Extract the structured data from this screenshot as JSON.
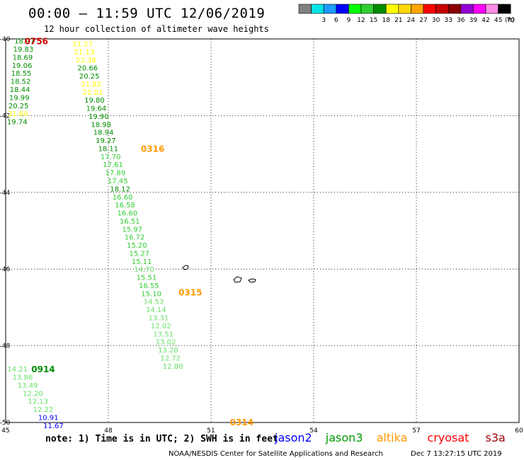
{
  "header": {
    "title": "00:00 – 11:59 UTC 12/06/2019",
    "subtitle": "12 hour collection of altimeter wave heights"
  },
  "colorbar": {
    "unit": "(ft)",
    "swatches": [
      {
        "label": "",
        "color": "#808080"
      },
      {
        "label": "3",
        "color": "#00e6e6"
      },
      {
        "label": "6",
        "color": "#1e9bff"
      },
      {
        "label": "9",
        "color": "#0000ff"
      },
      {
        "label": "12",
        "color": "#00ff00"
      },
      {
        "label": "15",
        "color": "#32cd32"
      },
      {
        "label": "18",
        "color": "#008c00"
      },
      {
        "label": "21",
        "color": "#ffff00"
      },
      {
        "label": "24",
        "color": "#ffd700"
      },
      {
        "label": "27",
        "color": "#ffa500"
      },
      {
        "label": "30",
        "color": "#ff0000"
      },
      {
        "label": "33",
        "color": "#c80000"
      },
      {
        "label": "36",
        "color": "#8b0000"
      },
      {
        "label": "39",
        "color": "#9400d3"
      },
      {
        "label": "42",
        "color": "#ff00ff"
      },
      {
        "label": "45",
        "color": "#ff8ce6"
      },
      {
        "label": "70",
        "color": "#000000"
      }
    ]
  },
  "footer": {
    "note": "note: 1) Time is in UTC; 2) SWH is in feet",
    "credit": "NOAA/NESDIS Center for Satellite Applications and Research",
    "timestamp": "Dec  7 13:27:15 UTC 2019",
    "missions": [
      {
        "name": "jason2",
        "color": "#0000ff"
      },
      {
        "name": "jason3",
        "color": "#009900"
      },
      {
        "name": "altika",
        "color": "#ff9900"
      },
      {
        "name": "cryosat",
        "color": "#ff0000"
      },
      {
        "name": "s3a",
        "color": "#990000"
      }
    ]
  },
  "chart_data": {
    "type": "scatter",
    "xlim": [
      45,
      60
    ],
    "ylim": [
      -50,
      -40
    ],
    "x_ticks": [
      "45",
      "48",
      "51",
      "54",
      "57",
      "60"
    ],
    "y_ticks": [
      "-40",
      "-42",
      "-44",
      "-46",
      "-48",
      "-50"
    ],
    "grid": true,
    "time_labels": [
      {
        "text": "0756",
        "lon": 45.55,
        "lat": -40.05,
        "color": "#cc0000"
      },
      {
        "text": "0316",
        "lon": 48.95,
        "lat": -42.85,
        "color": "#ff9900"
      },
      {
        "text": "0315",
        "lon": 50.05,
        "lat": -46.6,
        "color": "#ff9900"
      },
      {
        "text": "0914",
        "lon": 45.75,
        "lat": -48.6,
        "color": "#008c00"
      },
      {
        "text": "0314",
        "lon": 51.55,
        "lat": -49.98,
        "color": "#ff9900"
      }
    ],
    "track_jason3_a": [
      {
        "v": "18.97",
        "lon": 45.25,
        "lat": -40.05,
        "color": "#008c00"
      },
      {
        "v": "19.83",
        "lon": 45.22,
        "lat": -40.26,
        "color": "#008c00"
      },
      {
        "v": "18.69",
        "lon": 45.2,
        "lat": -40.47,
        "color": "#008c00"
      },
      {
        "v": "19.06",
        "lon": 45.18,
        "lat": -40.68,
        "color": "#008c00"
      },
      {
        "v": "18.55",
        "lon": 45.16,
        "lat": -40.89,
        "color": "#008c00"
      },
      {
        "v": "18.52",
        "lon": 45.14,
        "lat": -41.1,
        "color": "#008c00"
      },
      {
        "v": "18.44",
        "lon": 45.12,
        "lat": -41.31,
        "color": "#008c00"
      },
      {
        "v": "19.99",
        "lon": 45.1,
        "lat": -41.52,
        "color": "#008c00"
      },
      {
        "v": "20.25",
        "lon": 45.08,
        "lat": -41.73,
        "color": "#008c00"
      },
      {
        "v": "21.60",
        "lon": 45.06,
        "lat": -41.94,
        "color": "#ffff00"
      },
      {
        "v": "19.74",
        "lon": 45.04,
        "lat": -42.15,
        "color": "#008c00"
      }
    ],
    "track_altika": [
      {
        "v": "21.27",
        "lon": 46.95,
        "lat": -40.12,
        "color": "#ffff00"
      },
      {
        "v": "21.13",
        "lon": 47.0,
        "lat": -40.33,
        "color": "#ffff00"
      },
      {
        "v": "22.38",
        "lon": 47.05,
        "lat": -40.54,
        "color": "#ffff00"
      },
      {
        "v": "20.66",
        "lon": 47.1,
        "lat": -40.75,
        "color": "#008c00"
      },
      {
        "v": "20.25",
        "lon": 47.15,
        "lat": -40.96,
        "color": "#008c00"
      },
      {
        "v": "21.82",
        "lon": 47.2,
        "lat": -41.17,
        "color": "#ffff00"
      },
      {
        "v": "22.01",
        "lon": 47.25,
        "lat": -41.38,
        "color": "#ffff00"
      },
      {
        "v": "19.80",
        "lon": 47.3,
        "lat": -41.59,
        "color": "#008c00"
      },
      {
        "v": "19.64",
        "lon": 47.35,
        "lat": -41.8,
        "color": "#008c00"
      },
      {
        "v": "19.90",
        "lon": 47.42,
        "lat": -42.01,
        "color": "#008c00"
      },
      {
        "v": "18.98",
        "lon": 47.49,
        "lat": -42.22,
        "color": "#008c00"
      },
      {
        "v": "18.94",
        "lon": 47.56,
        "lat": -42.43,
        "color": "#008c00"
      },
      {
        "v": "19.27",
        "lon": 47.63,
        "lat": -42.64,
        "color": "#008c00"
      },
      {
        "v": "18.11",
        "lon": 47.7,
        "lat": -42.85,
        "color": "#008c00"
      },
      {
        "v": "17.70",
        "lon": 47.77,
        "lat": -43.06,
        "color": "#32cd32"
      },
      {
        "v": "17.61",
        "lon": 47.84,
        "lat": -43.27,
        "color": "#32cd32"
      },
      {
        "v": "17.89",
        "lon": 47.91,
        "lat": -43.48,
        "color": "#32cd32"
      },
      {
        "v": "17.45",
        "lon": 47.98,
        "lat": -43.69,
        "color": "#32cd32"
      },
      {
        "v": "18.12",
        "lon": 48.05,
        "lat": -43.9,
        "color": "#008c00"
      },
      {
        "v": "16.60",
        "lon": 48.12,
        "lat": -44.11,
        "color": "#32cd32"
      },
      {
        "v": "16.58",
        "lon": 48.19,
        "lat": -44.32,
        "color": "#32cd32"
      },
      {
        "v": "16.60",
        "lon": 48.26,
        "lat": -44.53,
        "color": "#32cd32"
      },
      {
        "v": "16.51",
        "lon": 48.33,
        "lat": -44.74,
        "color": "#32cd32"
      },
      {
        "v": "15.97",
        "lon": 48.4,
        "lat": -44.95,
        "color": "#32cd32"
      },
      {
        "v": "16.72",
        "lon": 48.47,
        "lat": -45.16,
        "color": "#32cd32"
      },
      {
        "v": "15.20",
        "lon": 48.54,
        "lat": -45.37,
        "color": "#32cd32"
      },
      {
        "v": "15.27",
        "lon": 48.61,
        "lat": -45.58,
        "color": "#32cd32"
      },
      {
        "v": "15.11",
        "lon": 48.68,
        "lat": -45.79,
        "color": "#32cd32"
      },
      {
        "v": "14.70",
        "lon": 48.75,
        "lat": -46.0,
        "color": "#66e066"
      },
      {
        "v": "15.51",
        "lon": 48.82,
        "lat": -46.21,
        "color": "#32cd32"
      },
      {
        "v": "16.55",
        "lon": 48.89,
        "lat": -46.42,
        "color": "#32cd32"
      },
      {
        "v": "15.10",
        "lon": 48.96,
        "lat": -46.63,
        "color": "#32cd32"
      },
      {
        "v": "14.53",
        "lon": 49.03,
        "lat": -46.84,
        "color": "#66e066"
      },
      {
        "v": "14.14",
        "lon": 49.1,
        "lat": -47.05,
        "color": "#66e066"
      },
      {
        "v": "13.31",
        "lon": 49.17,
        "lat": -47.26,
        "color": "#66e066"
      },
      {
        "v": "12.02",
        "lon": 49.24,
        "lat": -47.47,
        "color": "#66e066"
      },
      {
        "v": "13.51",
        "lon": 49.31,
        "lat": -47.68,
        "color": "#66e066"
      },
      {
        "v": "13.02",
        "lon": 49.38,
        "lat": -47.89,
        "color": "#66e066"
      },
      {
        "v": "13.28",
        "lon": 49.45,
        "lat": -48.1,
        "color": "#66e066"
      },
      {
        "v": "12.72",
        "lon": 49.52,
        "lat": -48.31,
        "color": "#66e066"
      },
      {
        "v": "12.80",
        "lon": 49.59,
        "lat": -48.52,
        "color": "#66e066"
      }
    ],
    "track_jason3_b": [
      {
        "v": "14.21",
        "lon": 45.05,
        "lat": -48.6,
        "color": "#66e066"
      },
      {
        "v": "13.86",
        "lon": 45.2,
        "lat": -48.81,
        "color": "#66e066"
      },
      {
        "v": "13.49",
        "lon": 45.35,
        "lat": -49.02,
        "color": "#66e066"
      },
      {
        "v": "12.20",
        "lon": 45.5,
        "lat": -49.23,
        "color": "#66e066"
      },
      {
        "v": "12.13",
        "lon": 45.65,
        "lat": -49.44,
        "color": "#66e066"
      },
      {
        "v": "12.22",
        "lon": 45.8,
        "lat": -49.65,
        "color": "#66e066"
      },
      {
        "v": "10.91",
        "lon": 45.95,
        "lat": -49.86,
        "color": "#0000ff"
      },
      {
        "v": "11.67",
        "lon": 46.1,
        "lat": -50.07,
        "color": "#0000ff"
      }
    ]
  }
}
